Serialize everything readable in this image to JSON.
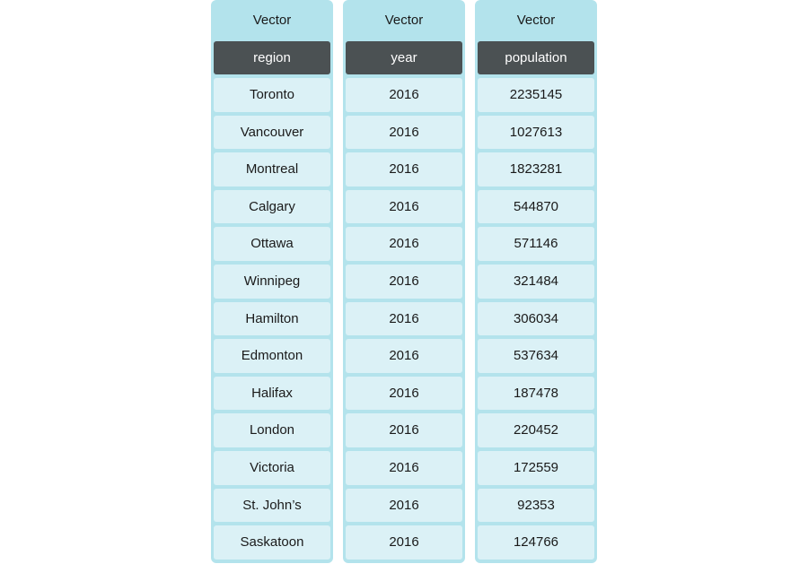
{
  "columns": [
    {
      "label": "Vector",
      "header": "region",
      "values": [
        "Toronto",
        "Vancouver",
        "Montreal",
        "Calgary",
        "Ottawa",
        "Winnipeg",
        "Hamilton",
        "Edmonton",
        "Halifax",
        "London",
        "Victoria",
        "St. John’s",
        "Saskatoon"
      ]
    },
    {
      "label": "Vector",
      "header": "year",
      "values": [
        "2016",
        "2016",
        "2016",
        "2016",
        "2016",
        "2016",
        "2016",
        "2016",
        "2016",
        "2016",
        "2016",
        "2016",
        "2016"
      ]
    },
    {
      "label": "Vector",
      "header": "population",
      "values": [
        "2235145",
        "1027613",
        "1823281",
        "544870",
        "571146",
        "321484",
        "306034",
        "537634",
        "187478",
        "220452",
        "172559",
        "92353",
        "124766"
      ]
    }
  ],
  "colors": {
    "vector_bg": "#b3e3ec",
    "header_bg": "#4b5153",
    "cell_bg": "#dbf1f6"
  }
}
